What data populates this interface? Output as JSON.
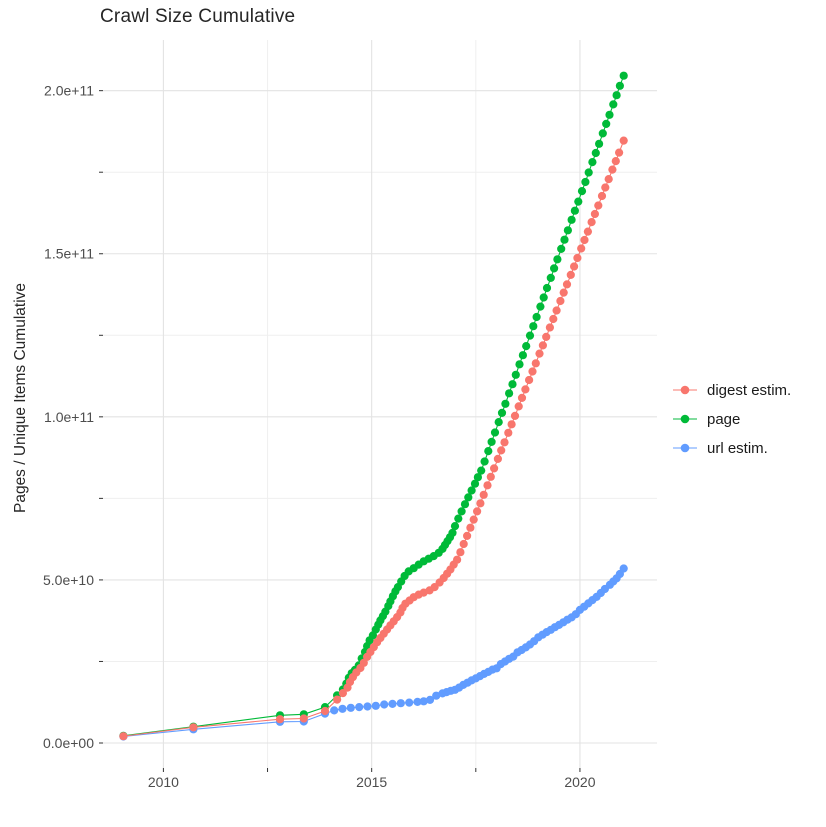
{
  "title": "Crawl Size Cumulative",
  "y_axis_title": "Pages / Unique Items Cumulative",
  "legend": {
    "entries": [
      {
        "label": "digest estim.",
        "color": "#F8766D"
      },
      {
        "label": "page",
        "color": "#00BA38"
      },
      {
        "label": "url estim.",
        "color": "#619CFF"
      }
    ]
  },
  "axes": {
    "x_ticks": [
      {
        "label": "2010",
        "value": 2010
      },
      {
        "label": "2015",
        "value": 2015
      },
      {
        "label": "2020",
        "value": 2020
      }
    ],
    "x_minor_ticks": [
      2012.5,
      2017.5
    ],
    "y_ticks": [
      {
        "label": "0.0e+00",
        "value": 0
      },
      {
        "label": "5.0e+10",
        "value": 50000000000.0
      },
      {
        "label": "1.0e+11",
        "value": 100000000000.0
      },
      {
        "label": "1.5e+11",
        "value": 150000000000.0
      },
      {
        "label": "2.0e+11",
        "value": 200000000000.0
      }
    ],
    "y_minor_ticks": [
      25000000000.0,
      75000000000.0,
      125000000000.0,
      175000000000.0
    ]
  },
  "chart_data": {
    "type": "scatter",
    "title": "Crawl Size Cumulative",
    "xlabel": "",
    "ylabel": "Pages / Unique Items Cumulative",
    "x_unit": "year",
    "xlim": [
      2008.55,
      2021.85
    ],
    "ylim": [
      0,
      214000000000.0
    ],
    "grid": true,
    "legend_position": "right",
    "series": [
      {
        "name": "digest estim.",
        "color": "#F8766D",
        "points": [
          [
            2009.04,
            2100000000.0
          ],
          [
            2010.72,
            4800000000.0
          ],
          [
            2012.8,
            7300000000.0
          ],
          [
            2013.37,
            7500000000.0
          ],
          [
            2013.88,
            9800000000.0
          ],
          [
            2014.17,
            13300000000.0
          ],
          [
            2014.31,
            15300000000.0
          ],
          [
            2014.42,
            17000000000.0
          ],
          [
            2014.48,
            18700000000.0
          ],
          [
            2014.55,
            20200000000.0
          ],
          [
            2014.63,
            21600000000.0
          ],
          [
            2014.73,
            23000000000.0
          ],
          [
            2014.81,
            24600000000.0
          ],
          [
            2014.89,
            26400000000.0
          ],
          [
            2014.97,
            27900000000.0
          ],
          [
            2015.05,
            29400000000.0
          ],
          [
            2015.13,
            30900000000.0
          ],
          [
            2015.21,
            32200000000.0
          ],
          [
            2015.29,
            33500000000.0
          ],
          [
            2015.37,
            34800000000.0
          ],
          [
            2015.45,
            36100000000.0
          ],
          [
            2015.53,
            37300000000.0
          ],
          [
            2015.61,
            38600000000.0
          ],
          [
            2015.69,
            40000000000.0
          ],
          [
            2015.74,
            41400000000.0
          ],
          [
            2015.81,
            42700000000.0
          ],
          [
            2015.91,
            43700000000.0
          ],
          [
            2016.01,
            44700000000.0
          ],
          [
            2016.13,
            45500000000.0
          ],
          [
            2016.25,
            46100000000.0
          ],
          [
            2016.39,
            46800000000.0
          ],
          [
            2016.51,
            47800000000.0
          ],
          [
            2016.63,
            49200000000.0
          ],
          [
            2016.73,
            50600000000.0
          ],
          [
            2016.81,
            51900000000.0
          ],
          [
            2016.89,
            53200000000.0
          ],
          [
            2016.97,
            54700000000.0
          ],
          [
            2017.05,
            56200000000.0
          ],
          [
            2017.13,
            58500000000.0
          ],
          [
            2017.21,
            61000000000.0
          ],
          [
            2017.29,
            63500000000.0
          ],
          [
            2017.37,
            66000000000.0
          ],
          [
            2017.45,
            68500000000.0
          ],
          [
            2017.53,
            71000000000.0
          ],
          [
            2017.61,
            73500000000.0
          ],
          [
            2017.69,
            76100000000.0
          ],
          [
            2017.78,
            79000000000.0
          ],
          [
            2017.86,
            81600000000.0
          ],
          [
            2017.94,
            84200000000.0
          ],
          [
            2018.03,
            87100000000.0
          ],
          [
            2018.11,
            89700000000.0
          ],
          [
            2018.19,
            92200000000.0
          ],
          [
            2018.28,
            95100000000.0
          ],
          [
            2018.36,
            97700000000.0
          ],
          [
            2018.44,
            100300000000.0
          ],
          [
            2018.53,
            103200000000.0
          ],
          [
            2018.61,
            105800000000.0
          ],
          [
            2018.69,
            108400000000.0
          ],
          [
            2018.78,
            111300000000.0
          ],
          [
            2018.86,
            113900000000.0
          ],
          [
            2018.94,
            116400000000.0
          ],
          [
            2019.03,
            119400000000.0
          ],
          [
            2019.11,
            121900000000.0
          ],
          [
            2019.19,
            124500000000.0
          ],
          [
            2019.28,
            127400000000.0
          ],
          [
            2019.36,
            130000000000.0
          ],
          [
            2019.44,
            132600000000.0
          ],
          [
            2019.53,
            135500000000.0
          ],
          [
            2019.61,
            138100000000.0
          ],
          [
            2019.69,
            140600000000.0
          ],
          [
            2019.78,
            143500000000.0
          ],
          [
            2019.86,
            146100000000.0
          ],
          [
            2019.94,
            148700000000.0
          ],
          [
            2020.03,
            151600000000.0
          ],
          [
            2020.11,
            154200000000.0
          ],
          [
            2020.19,
            156800000000.0
          ],
          [
            2020.28,
            159700000000.0
          ],
          [
            2020.36,
            162200000000.0
          ],
          [
            2020.44,
            164800000000.0
          ],
          [
            2020.53,
            167700000000.0
          ],
          [
            2020.61,
            170300000000.0
          ],
          [
            2020.69,
            172900000000.0
          ],
          [
            2020.78,
            175800000000.0
          ],
          [
            2020.86,
            178400000000.0
          ],
          [
            2020.94,
            181000000000.0
          ],
          [
            2021.05,
            184700000000.0
          ]
        ]
      },
      {
        "name": "page",
        "color": "#00BA38",
        "points": [
          [
            2009.04,
            2200000000.0
          ],
          [
            2010.72,
            5000000000.0
          ],
          [
            2012.8,
            8500000000.0
          ],
          [
            2013.37,
            8800000000.0
          ],
          [
            2013.88,
            11000000000.0
          ],
          [
            2014.17,
            14600000000.0
          ],
          [
            2014.31,
            16400000000.0
          ],
          [
            2014.39,
            18200000000.0
          ],
          [
            2014.45,
            20000000000.0
          ],
          [
            2014.52,
            21400000000.0
          ],
          [
            2014.6,
            22400000000.0
          ],
          [
            2014.69,
            23800000000.0
          ],
          [
            2014.76,
            25900000000.0
          ],
          [
            2014.84,
            27900000000.0
          ],
          [
            2014.89,
            29700000000.0
          ],
          [
            2014.95,
            31500000000.0
          ],
          [
            2015.03,
            33000000000.0
          ],
          [
            2015.1,
            34800000000.0
          ],
          [
            2015.16,
            36300000000.0
          ],
          [
            2015.21,
            37600000000.0
          ],
          [
            2015.27,
            38900000000.0
          ],
          [
            2015.33,
            40300000000.0
          ],
          [
            2015.4,
            42000000000.0
          ],
          [
            2015.45,
            43400000000.0
          ],
          [
            2015.51,
            45000000000.0
          ],
          [
            2015.57,
            46500000000.0
          ],
          [
            2015.63,
            47800000000.0
          ],
          [
            2015.71,
            49500000000.0
          ],
          [
            2015.79,
            51200000000.0
          ],
          [
            2015.89,
            52600000000.0
          ],
          [
            2016.01,
            53600000000.0
          ],
          [
            2016.13,
            54700000000.0
          ],
          [
            2016.25,
            55700000000.0
          ],
          [
            2016.37,
            56500000000.0
          ],
          [
            2016.49,
            57300000000.0
          ],
          [
            2016.61,
            58300000000.0
          ],
          [
            2016.7,
            59500000000.0
          ],
          [
            2016.76,
            60700000000.0
          ],
          [
            2016.82,
            61900000000.0
          ],
          [
            2016.88,
            63100000000.0
          ],
          [
            2016.94,
            64400000000.0
          ],
          [
            2017.0,
            66500000000.0
          ],
          [
            2017.08,
            68800000000.0
          ],
          [
            2017.16,
            71000000000.0
          ],
          [
            2017.24,
            73200000000.0
          ],
          [
            2017.32,
            75300000000.0
          ],
          [
            2017.4,
            77400000000.0
          ],
          [
            2017.48,
            79500000000.0
          ],
          [
            2017.55,
            81500000000.0
          ],
          [
            2017.63,
            83500000000.0
          ],
          [
            2017.71,
            86300000000.0
          ],
          [
            2017.8,
            89500000000.0
          ],
          [
            2017.88,
            92300000000.0
          ],
          [
            2017.96,
            95200000000.0
          ],
          [
            2018.05,
            98400000000.0
          ],
          [
            2018.13,
            101200000000.0
          ],
          [
            2018.21,
            104000000000.0
          ],
          [
            2018.3,
            107200000000.0
          ],
          [
            2018.38,
            110000000000.0
          ],
          [
            2018.46,
            112900000000.0
          ],
          [
            2018.55,
            116100000000.0
          ],
          [
            2018.63,
            118900000000.0
          ],
          [
            2018.71,
            121700000000.0
          ],
          [
            2018.8,
            124900000000.0
          ],
          [
            2018.88,
            127800000000.0
          ],
          [
            2018.96,
            130600000000.0
          ],
          [
            2019.05,
            133800000000.0
          ],
          [
            2019.13,
            136600000000.0
          ],
          [
            2019.21,
            139500000000.0
          ],
          [
            2019.3,
            142600000000.0
          ],
          [
            2019.38,
            145500000000.0
          ],
          [
            2019.46,
            148300000000.0
          ],
          [
            2019.55,
            151500000000.0
          ],
          [
            2019.63,
            154300000000.0
          ],
          [
            2019.71,
            157200000000.0
          ],
          [
            2019.8,
            160400000000.0
          ],
          [
            2019.88,
            163200000000.0
          ],
          [
            2019.96,
            166000000000.0
          ],
          [
            2020.05,
            169200000000.0
          ],
          [
            2020.13,
            172000000000.0
          ],
          [
            2020.21,
            174900000000.0
          ],
          [
            2020.3,
            178100000000.0
          ],
          [
            2020.38,
            180900000000.0
          ],
          [
            2020.46,
            183700000000.0
          ],
          [
            2020.55,
            186900000000.0
          ],
          [
            2020.63,
            189800000000.0
          ],
          [
            2020.71,
            192600000000.0
          ],
          [
            2020.8,
            195800000000.0
          ],
          [
            2020.88,
            198600000000.0
          ],
          [
            2020.96,
            201500000000.0
          ],
          [
            2021.05,
            204600000000.0
          ]
        ]
      },
      {
        "name": "url estim.",
        "color": "#619CFF",
        "points": [
          [
            2009.04,
            2000000000.0
          ],
          [
            2010.72,
            4200000000.0
          ],
          [
            2012.8,
            6500000000.0
          ],
          [
            2013.37,
            6600000000.0
          ],
          [
            2013.88,
            9000000000.0
          ],
          [
            2014.1,
            10000000000.0
          ],
          [
            2014.3,
            10500000000.0
          ],
          [
            2014.5,
            10800000000.0
          ],
          [
            2014.7,
            11000000000.0
          ],
          [
            2014.9,
            11200000000.0
          ],
          [
            2015.1,
            11400000000.0
          ],
          [
            2015.3,
            11800000000.0
          ],
          [
            2015.5,
            12000000000.0
          ],
          [
            2015.7,
            12200000000.0
          ],
          [
            2015.9,
            12400000000.0
          ],
          [
            2016.1,
            12600000000.0
          ],
          [
            2016.25,
            12800000000.0
          ],
          [
            2016.4,
            13200000000.0
          ],
          [
            2016.55,
            14500000000.0
          ],
          [
            2016.7,
            15200000000.0
          ],
          [
            2016.8,
            15600000000.0
          ],
          [
            2016.9,
            16000000000.0
          ],
          [
            2017.0,
            16300000000.0
          ],
          [
            2017.1,
            17000000000.0
          ],
          [
            2017.2,
            17800000000.0
          ],
          [
            2017.3,
            18500000000.0
          ],
          [
            2017.4,
            19200000000.0
          ],
          [
            2017.5,
            19800000000.0
          ],
          [
            2017.6,
            20500000000.0
          ],
          [
            2017.7,
            21200000000.0
          ],
          [
            2017.8,
            21800000000.0
          ],
          [
            2017.9,
            22500000000.0
          ],
          [
            2018.0,
            22900000000.0
          ],
          [
            2018.1,
            24200000000.0
          ],
          [
            2018.2,
            25000000000.0
          ],
          [
            2018.3,
            25800000000.0
          ],
          [
            2018.4,
            26500000000.0
          ],
          [
            2018.5,
            27800000000.0
          ],
          [
            2018.6,
            28500000000.0
          ],
          [
            2018.7,
            29300000000.0
          ],
          [
            2018.8,
            30200000000.0
          ],
          [
            2018.9,
            31200000000.0
          ],
          [
            2019.0,
            32400000000.0
          ],
          [
            2019.1,
            33200000000.0
          ],
          [
            2019.2,
            34000000000.0
          ],
          [
            2019.3,
            34700000000.0
          ],
          [
            2019.4,
            35500000000.0
          ],
          [
            2019.5,
            36200000000.0
          ],
          [
            2019.6,
            37000000000.0
          ],
          [
            2019.7,
            37800000000.0
          ],
          [
            2019.8,
            38500000000.0
          ],
          [
            2019.9,
            39500000000.0
          ],
          [
            2020.0,
            40800000000.0
          ],
          [
            2020.1,
            41800000000.0
          ],
          [
            2020.2,
            42800000000.0
          ],
          [
            2020.3,
            43800000000.0
          ],
          [
            2020.4,
            44800000000.0
          ],
          [
            2020.5,
            46000000000.0
          ],
          [
            2020.6,
            47200000000.0
          ],
          [
            2020.72,
            48500000000.0
          ],
          [
            2020.8,
            49500000000.0
          ],
          [
            2020.88,
            50500000000.0
          ],
          [
            2020.96,
            51800000000.0
          ],
          [
            2021.05,
            53500000000.0
          ]
        ]
      }
    ]
  },
  "style_colors": {
    "grid_major": "#e3e3e3",
    "grid_minor": "#efefef",
    "tick_mark": "#333333",
    "tick_label": "#4d4d4d"
  }
}
